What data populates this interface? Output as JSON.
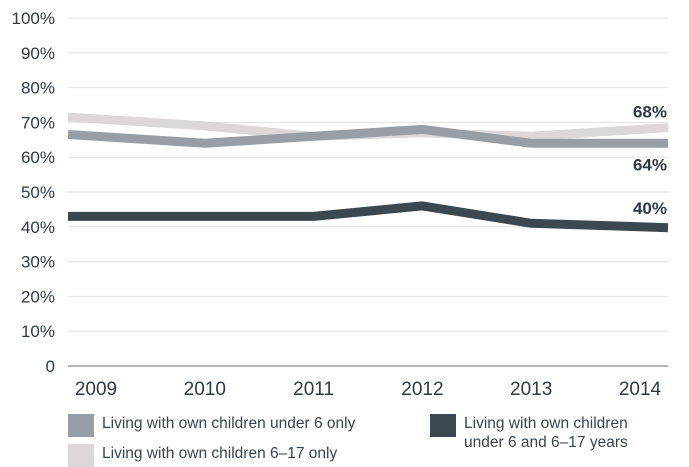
{
  "chart_data": {
    "type": "line",
    "x": [
      "2009",
      "2010",
      "2011",
      "2012",
      "2013",
      "2014"
    ],
    "ylim": [
      0,
      100
    ],
    "yticks": [
      0,
      10,
      20,
      30,
      40,
      50,
      60,
      70,
      80,
      90,
      100
    ],
    "ytick_labels": [
      "0",
      "10%",
      "20%",
      "30%",
      "40%",
      "50%",
      "60%",
      "70%",
      "80%",
      "90%",
      "100%"
    ],
    "grid": true,
    "legend_placement": "bottom",
    "series": [
      {
        "name": "Living with own children 6–17 only",
        "color": "#dcd8d8",
        "values": [
          71,
          69,
          66,
          67,
          66,
          68
        ],
        "end_label": "68%"
      },
      {
        "name": "Living with own children under 6 only",
        "color": "#989ea3",
        "values": [
          66,
          64,
          66,
          68,
          64,
          64
        ],
        "end_label": "64%"
      },
      {
        "name": "Living with own children under 6 and 6–17 years",
        "color": "#3b4850",
        "values": [
          43,
          43,
          43,
          46,
          41,
          40
        ],
        "end_label": "40%"
      }
    ]
  },
  "legend": [
    {
      "label": "Living with own children under 6 only",
      "color": "#989ea3"
    },
    {
      "label": "Living with own children 6–17 only",
      "color": "#dcd8d8"
    },
    {
      "label": "Living with own children\nunder 6 and 6–17 years",
      "color": "#3b4850"
    }
  ]
}
